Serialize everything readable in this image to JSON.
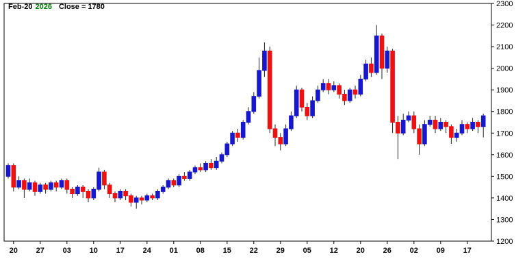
{
  "header": {
    "date_label": "Feb-20",
    "year_label": "2026",
    "close_label": "Close = 1780"
  },
  "colors": {
    "up": "#1717cc",
    "down": "#ee1111",
    "wick": "#222222",
    "axis": "#000000",
    "background": "#ffffff",
    "header_year": "#008000"
  },
  "chart_data": {
    "type": "candlestick",
    "title": "Feb-20 2026 Close = 1780",
    "ylim": [
      1200,
      2300
    ],
    "y_ticks": [
      1200,
      1300,
      1400,
      1500,
      1600,
      1700,
      1800,
      1900,
      2000,
      2100,
      2200,
      2300
    ],
    "x_tick_labels": [
      "20",
      "27",
      "03",
      "10",
      "17",
      "24",
      "01",
      "08",
      "15",
      "22",
      "29",
      "05",
      "12",
      "20",
      "26",
      "02",
      "09",
      "17"
    ],
    "x_ticks_every_n_candles": 5,
    "x_first_tick_candle_index": 1,
    "legend_position": "none",
    "grid": false,
    "candles_format": [
      "open",
      "high",
      "low",
      "close"
    ],
    "candles": [
      [
        1500,
        1560,
        1490,
        1550
      ],
      [
        1550,
        1560,
        1430,
        1450
      ],
      [
        1450,
        1500,
        1440,
        1480
      ],
      [
        1480,
        1490,
        1400,
        1440
      ],
      [
        1440,
        1490,
        1430,
        1470
      ],
      [
        1470,
        1480,
        1410,
        1430
      ],
      [
        1430,
        1470,
        1420,
        1460
      ],
      [
        1460,
        1470,
        1420,
        1440
      ],
      [
        1440,
        1480,
        1430,
        1470
      ],
      [
        1470,
        1480,
        1430,
        1450
      ],
      [
        1450,
        1490,
        1440,
        1480
      ],
      [
        1480,
        1490,
        1420,
        1440
      ],
      [
        1440,
        1450,
        1400,
        1420
      ],
      [
        1420,
        1460,
        1410,
        1450
      ],
      [
        1450,
        1460,
        1400,
        1430
      ],
      [
        1430,
        1440,
        1380,
        1400
      ],
      [
        1400,
        1450,
        1390,
        1440
      ],
      [
        1440,
        1540,
        1430,
        1520
      ],
      [
        1520,
        1530,
        1440,
        1460
      ],
      [
        1460,
        1470,
        1400,
        1420
      ],
      [
        1420,
        1430,
        1380,
        1400
      ],
      [
        1400,
        1440,
        1390,
        1430
      ],
      [
        1430,
        1440,
        1390,
        1410
      ],
      [
        1410,
        1420,
        1360,
        1380
      ],
      [
        1380,
        1410,
        1350,
        1400
      ],
      [
        1400,
        1410,
        1370,
        1390
      ],
      [
        1390,
        1420,
        1380,
        1410
      ],
      [
        1410,
        1420,
        1390,
        1400
      ],
      [
        1400,
        1440,
        1390,
        1430
      ],
      [
        1430,
        1460,
        1420,
        1450
      ],
      [
        1450,
        1490,
        1440,
        1480
      ],
      [
        1480,
        1490,
        1450,
        1460
      ],
      [
        1460,
        1510,
        1450,
        1500
      ],
      [
        1500,
        1520,
        1480,
        1490
      ],
      [
        1490,
        1530,
        1480,
        1520
      ],
      [
        1520,
        1550,
        1510,
        1540
      ],
      [
        1540,
        1560,
        1520,
        1530
      ],
      [
        1530,
        1570,
        1520,
        1560
      ],
      [
        1560,
        1580,
        1530,
        1540
      ],
      [
        1540,
        1590,
        1530,
        1570
      ],
      [
        1570,
        1610,
        1560,
        1600
      ],
      [
        1600,
        1660,
        1590,
        1650
      ],
      [
        1650,
        1710,
        1640,
        1700
      ],
      [
        1700,
        1720,
        1660,
        1680
      ],
      [
        1680,
        1760,
        1670,
        1750
      ],
      [
        1750,
        1820,
        1740,
        1800
      ],
      [
        1800,
        1890,
        1790,
        1870
      ],
      [
        1870,
        2050,
        1860,
        1990
      ],
      [
        1990,
        2120,
        1960,
        2080
      ],
      [
        2080,
        2100,
        1700,
        1720
      ],
      [
        1720,
        1740,
        1640,
        1680
      ],
      [
        1680,
        1700,
        1620,
        1650
      ],
      [
        1650,
        1740,
        1640,
        1720
      ],
      [
        1720,
        1800,
        1710,
        1780
      ],
      [
        1780,
        1920,
        1770,
        1900
      ],
      [
        1900,
        1910,
        1800,
        1820
      ],
      [
        1820,
        1840,
        1760,
        1780
      ],
      [
        1780,
        1870,
        1770,
        1850
      ],
      [
        1850,
        1920,
        1840,
        1900
      ],
      [
        1900,
        1950,
        1890,
        1930
      ],
      [
        1930,
        1950,
        1880,
        1900
      ],
      [
        1900,
        1940,
        1890,
        1920
      ],
      [
        1920,
        1930,
        1860,
        1880
      ],
      [
        1880,
        1900,
        1830,
        1850
      ],
      [
        1850,
        1910,
        1840,
        1900
      ],
      [
        1900,
        1920,
        1860,
        1880
      ],
      [
        1880,
        1970,
        1870,
        1950
      ],
      [
        1950,
        2040,
        1940,
        2020
      ],
      [
        2020,
        2050,
        1960,
        1980
      ],
      [
        1980,
        2200,
        1970,
        2150
      ],
      [
        2150,
        2160,
        1950,
        2000
      ],
      [
        2000,
        2100,
        1980,
        2080
      ],
      [
        2080,
        2090,
        1700,
        1750
      ],
      [
        1750,
        1780,
        1580,
        1700
      ],
      [
        1700,
        1790,
        1690,
        1760
      ],
      [
        1760,
        1800,
        1750,
        1780
      ],
      [
        1780,
        1800,
        1700,
        1720
      ],
      [
        1720,
        1740,
        1600,
        1650
      ],
      [
        1650,
        1760,
        1640,
        1740
      ],
      [
        1740,
        1780,
        1730,
        1760
      ],
      [
        1760,
        1780,
        1700,
        1720
      ],
      [
        1720,
        1770,
        1710,
        1750
      ],
      [
        1750,
        1760,
        1700,
        1730
      ],
      [
        1730,
        1740,
        1650,
        1680
      ],
      [
        1680,
        1720,
        1660,
        1700
      ],
      [
        1700,
        1760,
        1690,
        1740
      ],
      [
        1740,
        1750,
        1700,
        1720
      ],
      [
        1720,
        1770,
        1710,
        1750
      ],
      [
        1750,
        1760,
        1700,
        1730
      ],
      [
        1730,
        1790,
        1680,
        1780
      ]
    ]
  }
}
